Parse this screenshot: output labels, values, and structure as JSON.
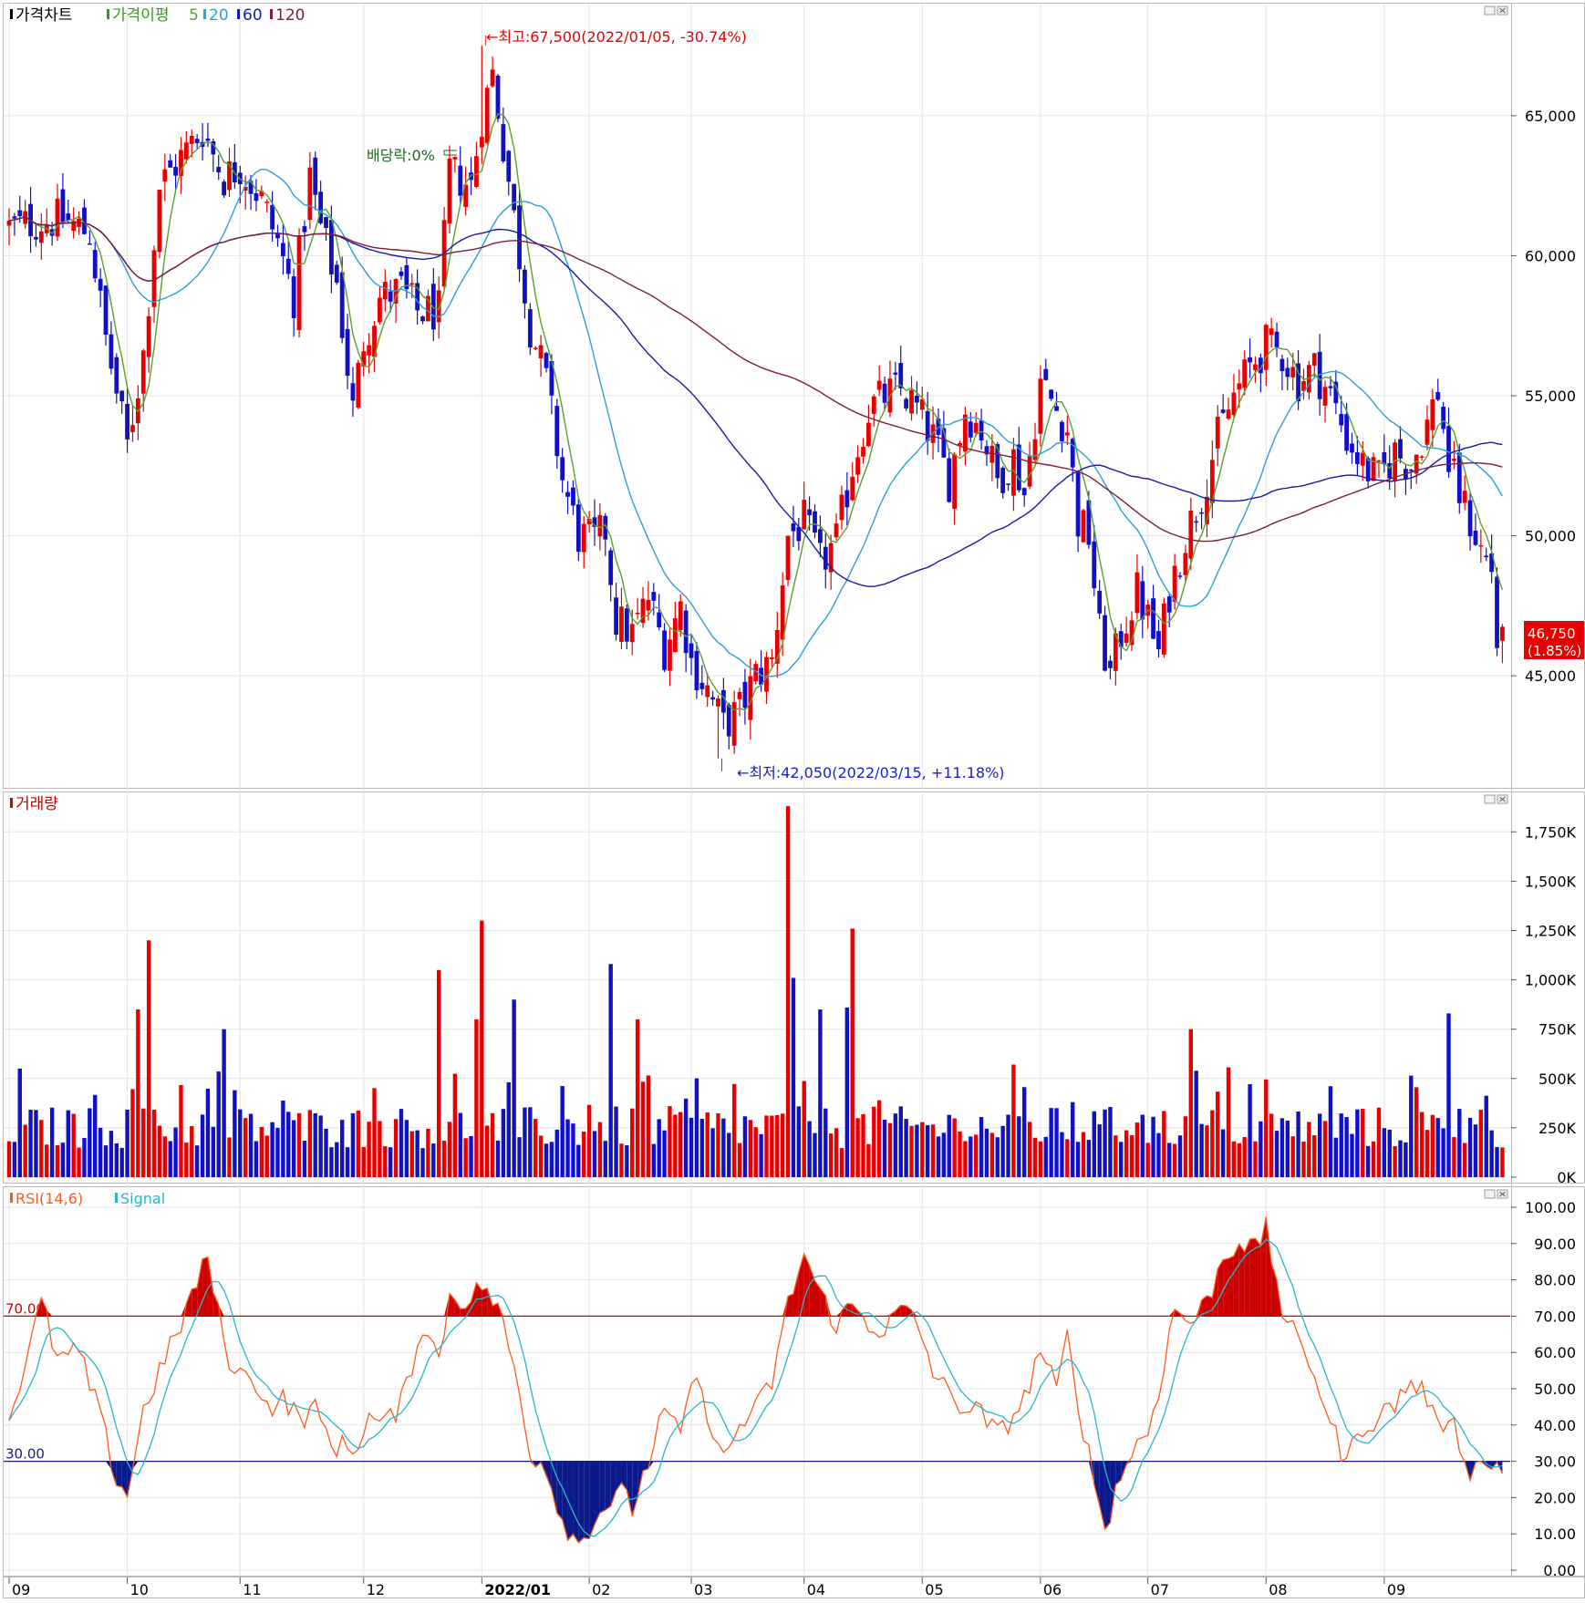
{
  "legend": {
    "price": {
      "label": "가격차트",
      "color": "#000000"
    },
    "ma": {
      "label": "가격이평",
      "color": "#3a9a1c"
    },
    "ma_periods": [
      {
        "label": "5",
        "color": "#5aa02c"
      },
      {
        "label": "20",
        "color": "#2b9fd9"
      },
      {
        "label": "60",
        "color": "#1a1aa8"
      },
      {
        "label": "120",
        "color": "#7a1f3d"
      }
    ],
    "volume": {
      "label": "거래량",
      "color": "#cc0000"
    },
    "rsi": {
      "label": "RSI(14,6)",
      "color": "#ff5a1a"
    },
    "signal": {
      "label": "Signal",
      "color": "#29b6c8"
    }
  },
  "annotations": {
    "high": "←최고:67,500(2022/01/05, -30.74%)",
    "low": "←최저:42,050(2022/03/15, +11.18%)",
    "dividend": "배당락:0%",
    "current_price": "46,750",
    "current_change": "(1.85%)"
  },
  "colors": {
    "up": "#e60000",
    "down": "#1010c8",
    "grid": "#e4e4e4",
    "axis": "#9a9a9a"
  },
  "chart_data": [
    {
      "type": "candlestick",
      "panel": "price",
      "y_ticks": [
        45000,
        50000,
        55000,
        60000,
        65000
      ],
      "y_tick_labels": [
        "45,000",
        "50,000",
        "55,000",
        "60,000",
        "65,000"
      ],
      "ylim": [
        41000,
        69000
      ],
      "x_ticks": [
        "09",
        "10",
        "11",
        "12",
        "2022/01",
        "02",
        "03",
        "04",
        "05",
        "06",
        "07",
        "08",
        "09"
      ],
      "x_tick_positions": [
        0,
        22,
        43,
        66,
        88,
        108,
        127,
        148,
        170,
        192,
        212,
        234,
        256
      ],
      "high": {
        "value": 67500,
        "date": "2022/01/05"
      },
      "low": {
        "value": 42050,
        "date": "2022/03/15"
      },
      "last_close": 46750,
      "close_key_points": [
        [
          0,
          61000
        ],
        [
          5,
          61200
        ],
        [
          10,
          61300
        ],
        [
          15,
          60800
        ],
        [
          18,
          57000
        ],
        [
          22,
          53200
        ],
        [
          25,
          56500
        ],
        [
          28,
          62500
        ],
        [
          32,
          63500
        ],
        [
          36,
          64500
        ],
        [
          40,
          62800
        ],
        [
          43,
          63200
        ],
        [
          47,
          62000
        ],
        [
          50,
          60500
        ],
        [
          53,
          58500
        ],
        [
          56,
          62800
        ],
        [
          58,
          61000
        ],
        [
          61,
          59000
        ],
        [
          64,
          54500
        ],
        [
          66,
          57000
        ],
        [
          69,
          58500
        ],
        [
          73,
          58800
        ],
        [
          76,
          58000
        ],
        [
          80,
          58000
        ],
        [
          82,
          63000
        ],
        [
          86,
          62500
        ],
        [
          88,
          65000
        ],
        [
          90,
          66500
        ],
        [
          92,
          64000
        ],
        [
          95,
          60000
        ],
        [
          97,
          57500
        ],
        [
          100,
          55500
        ],
        [
          103,
          52000
        ],
        [
          106,
          50000
        ],
        [
          109,
          49800
        ],
        [
          111,
          50200
        ],
        [
          113,
          47000
        ],
        [
          116,
          46500
        ],
        [
          119,
          47800
        ],
        [
          122,
          46000
        ],
        [
          125,
          47500
        ],
        [
          127,
          45500
        ],
        [
          130,
          44500
        ],
        [
          133,
          43200
        ],
        [
          136,
          43800
        ],
        [
          139,
          45000
        ],
        [
          142,
          45500
        ],
        [
          145,
          50000
        ],
        [
          148,
          50500
        ],
        [
          151,
          49000
        ],
        [
          154,
          49800
        ],
        [
          157,
          52500
        ],
        [
          160,
          54500
        ],
        [
          163,
          55000
        ],
        [
          166,
          55200
        ],
        [
          169,
          54500
        ],
        [
          172,
          53500
        ],
        [
          175,
          52000
        ],
        [
          178,
          54500
        ],
        [
          181,
          53800
        ],
        [
          184,
          52000
        ],
        [
          187,
          52800
        ],
        [
          189,
          51500
        ],
        [
          192,
          55500
        ],
        [
          195,
          54500
        ],
        [
          197,
          53800
        ],
        [
          199,
          50500
        ],
        [
          201,
          50000
        ],
        [
          203,
          46500
        ],
        [
          205,
          45000
        ],
        [
          207,
          46500
        ],
        [
          210,
          48000
        ],
        [
          212,
          47000
        ],
        [
          214,
          45800
        ],
        [
          216,
          48000
        ],
        [
          219,
          50000
        ],
        [
          222,
          51500
        ],
        [
          225,
          53500
        ],
        [
          228,
          55000
        ],
        [
          231,
          56000
        ],
        [
          234,
          56800
        ],
        [
          237,
          56500
        ],
        [
          240,
          55500
        ],
        [
          243,
          56000
        ],
        [
          246,
          55000
        ],
        [
          249,
          53500
        ],
        [
          252,
          52500
        ],
        [
          255,
          52000
        ],
        [
          258,
          53000
        ],
        [
          261,
          52500
        ],
        [
          264,
          54000
        ],
        [
          266,
          55200
        ],
        [
          268,
          52500
        ],
        [
          270,
          51500
        ],
        [
          272,
          50500
        ],
        [
          274,
          49500
        ],
        [
          276,
          48800
        ],
        [
          277,
          46200
        ],
        [
          278,
          46750
        ]
      ]
    },
    {
      "type": "bar",
      "panel": "volume",
      "y_ticks": [
        0,
        250,
        500,
        750,
        1000,
        1250,
        1500,
        1750
      ],
      "y_tick_labels": [
        "0K",
        "250K",
        "500K",
        "750K",
        "1,000K",
        "1,250K",
        "1,500K",
        "1,750K"
      ],
      "ylim": [
        0,
        1950
      ],
      "unit": "K",
      "spikes": [
        [
          24,
          850
        ],
        [
          26,
          1200
        ],
        [
          40,
          750
        ],
        [
          80,
          1050
        ],
        [
          87,
          800
        ],
        [
          88,
          1300
        ],
        [
          94,
          900
        ],
        [
          112,
          1080
        ],
        [
          117,
          800
        ],
        [
          145,
          1880
        ],
        [
          146,
          1010
        ],
        [
          151,
          850
        ],
        [
          156,
          860
        ],
        [
          157,
          1260
        ],
        [
          220,
          750
        ],
        [
          268,
          830
        ]
      ],
      "base_level": 240
    },
    {
      "type": "line",
      "panel": "rsi",
      "y_ticks": [
        0,
        10,
        20,
        30,
        40,
        50,
        60,
        70,
        80,
        90,
        100
      ],
      "y_tick_labels": [
        "0.00",
        "10.00",
        "20.00",
        "30.00",
        "40.00",
        "50.00",
        "60.00",
        "70.00",
        "80.00",
        "90.00",
        "100.00"
      ],
      "ylim": [
        0,
        100
      ],
      "upper_line": {
        "value": 70,
        "label": "70.00"
      },
      "lower_line": {
        "value": 30,
        "label": "30.00"
      },
      "rsi_key_points": [
        [
          0,
          42
        ],
        [
          4,
          62
        ],
        [
          6,
          74
        ],
        [
          9,
          58
        ],
        [
          13,
          60
        ],
        [
          17,
          42
        ],
        [
          20,
          25
        ],
        [
          22,
          21
        ],
        [
          25,
          44
        ],
        [
          28,
          55
        ],
        [
          31,
          64
        ],
        [
          34,
          76
        ],
        [
          37,
          86
        ],
        [
          39,
          70
        ],
        [
          42,
          53
        ],
        [
          45,
          55
        ],
        [
          48,
          45
        ],
        [
          51,
          47
        ],
        [
          54,
          42
        ],
        [
          57,
          44
        ],
        [
          60,
          35
        ],
        [
          64,
          33
        ],
        [
          67,
          42
        ],
        [
          70,
          40
        ],
        [
          73,
          46
        ],
        [
          77,
          68
        ],
        [
          80,
          58
        ],
        [
          82,
          76
        ],
        [
          86,
          74
        ],
        [
          88,
          79
        ],
        [
          91,
          72
        ],
        [
          94,
          56
        ],
        [
          97,
          33
        ],
        [
          100,
          28
        ],
        [
          103,
          14
        ],
        [
          106,
          7
        ],
        [
          108,
          12
        ],
        [
          111,
          18
        ],
        [
          114,
          21
        ],
        [
          116,
          17
        ],
        [
          119,
          30
        ],
        [
          122,
          44
        ],
        [
          125,
          36
        ],
        [
          127,
          53
        ],
        [
          130,
          44
        ],
        [
          133,
          30
        ],
        [
          136,
          40
        ],
        [
          139,
          44
        ],
        [
          142,
          52
        ],
        [
          145,
          73
        ],
        [
          148,
          87
        ],
        [
          151,
          76
        ],
        [
          154,
          68
        ],
        [
          157,
          73
        ],
        [
          160,
          68
        ],
        [
          163,
          66
        ],
        [
          166,
          72
        ],
        [
          169,
          68
        ],
        [
          172,
          55
        ],
        [
          175,
          48
        ],
        [
          178,
          45
        ],
        [
          181,
          43
        ],
        [
          184,
          37
        ],
        [
          187,
          43
        ],
        [
          189,
          47
        ],
        [
          192,
          61
        ],
        [
          195,
          49
        ],
        [
          197,
          64
        ],
        [
          200,
          39
        ],
        [
          202,
          25
        ],
        [
          204,
          11
        ],
        [
          206,
          22
        ],
        [
          209,
          33
        ],
        [
          212,
          38
        ],
        [
          214,
          50
        ],
        [
          217,
          72
        ],
        [
          220,
          68
        ],
        [
          223,
          74
        ],
        [
          226,
          86
        ],
        [
          229,
          91
        ],
        [
          232,
          88
        ],
        [
          234,
          94
        ],
        [
          237,
          72
        ],
        [
          240,
          62
        ],
        [
          243,
          55
        ],
        [
          246,
          40
        ],
        [
          249,
          30
        ],
        [
          252,
          40
        ],
        [
          255,
          42
        ],
        [
          258,
          46
        ],
        [
          261,
          52
        ],
        [
          264,
          48
        ],
        [
          266,
          38
        ],
        [
          268,
          44
        ],
        [
          270,
          35
        ],
        [
          272,
          28
        ],
        [
          274,
          29
        ]
      ]
    }
  ]
}
